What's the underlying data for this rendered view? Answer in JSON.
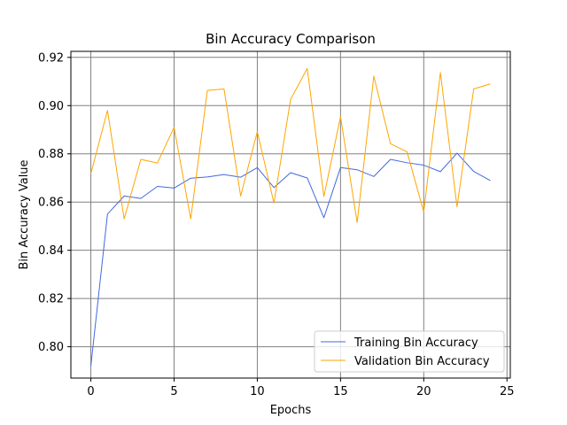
{
  "chart_data": {
    "type": "line",
    "title": "Bin Accuracy Comparison",
    "xlabel": "Epochs",
    "ylabel": "Bin Accuracy Value",
    "x": [
      0,
      1,
      2,
      3,
      4,
      5,
      6,
      7,
      8,
      9,
      10,
      11,
      12,
      13,
      14,
      15,
      16,
      17,
      18,
      19,
      20,
      21,
      22,
      23,
      24
    ],
    "xlim": [
      -1.2,
      25.2
    ],
    "ylim": [
      0.787,
      0.9225
    ],
    "xticks": [
      0,
      5,
      10,
      15,
      20,
      25
    ],
    "yticks": [
      0.8,
      0.82,
      0.84,
      0.86,
      0.88,
      0.9,
      0.92
    ],
    "ytick_labels": [
      "0.80",
      "0.82",
      "0.84",
      "0.86",
      "0.88",
      "0.90",
      "0.92"
    ],
    "grid": true,
    "grid_color": "#808080",
    "legend_position": "lower-right",
    "series": [
      {
        "name": "Training Bin Accuracy",
        "color": "#4169e1",
        "values": [
          0.792,
          0.855,
          0.8625,
          0.8615,
          0.8665,
          0.8658,
          0.8699,
          0.8704,
          0.8714,
          0.8703,
          0.8743,
          0.866,
          0.8722,
          0.87,
          0.8535,
          0.8743,
          0.8734,
          0.8706,
          0.8777,
          0.8763,
          0.8753,
          0.8726,
          0.8803,
          0.8727,
          0.8689
        ]
      },
      {
        "name": "Validation Bin Accuracy",
        "color": "#ffa500",
        "values": [
          0.8718,
          0.898,
          0.853,
          0.8777,
          0.8762,
          0.891,
          0.853,
          0.9063,
          0.9069,
          0.8625,
          0.8892,
          0.8596,
          0.9026,
          0.9154,
          0.8623,
          0.8954,
          0.8515,
          0.9122,
          0.8842,
          0.8808,
          0.8559,
          0.9137,
          0.858,
          0.9069,
          0.909
        ]
      }
    ]
  }
}
